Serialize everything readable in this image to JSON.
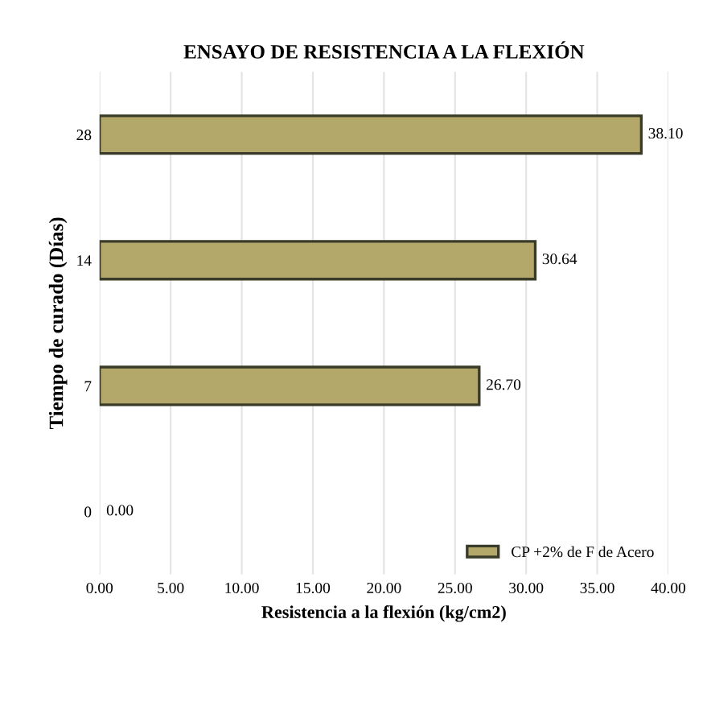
{
  "chart_data": {
    "type": "bar",
    "orientation": "horizontal",
    "title": "ENSAYO DE RESISTENCIA A LA FLEXIÓN",
    "xlabel": "Resistencia a la flexión (kg/cm2)",
    "ylabel": "Tiempo de curado (Días)",
    "categories": [
      "28",
      "14",
      "7",
      "0"
    ],
    "series": [
      {
        "name": "CP +2% de F de Acero",
        "color": "#b3a86a",
        "values": [
          38.1,
          30.64,
          26.7,
          0.0
        ]
      }
    ],
    "value_labels": [
      "38.10",
      "30.64",
      "26.70",
      "0.00"
    ],
    "xlim": [
      0,
      40
    ],
    "xticks": [
      {
        "value": 0,
        "label": "0.00"
      },
      {
        "value": 5,
        "label": "5.00"
      },
      {
        "value": 10,
        "label": "10.00"
      },
      {
        "value": 15,
        "label": "15.00"
      },
      {
        "value": 20,
        "label": "20.00"
      },
      {
        "value": 25,
        "label": "25.00"
      },
      {
        "value": 30,
        "label": "30.00"
      },
      {
        "value": 35,
        "label": "35.00"
      },
      {
        "value": 40,
        "label": "40.00"
      }
    ],
    "grid": "x",
    "legend": "bottom right"
  }
}
